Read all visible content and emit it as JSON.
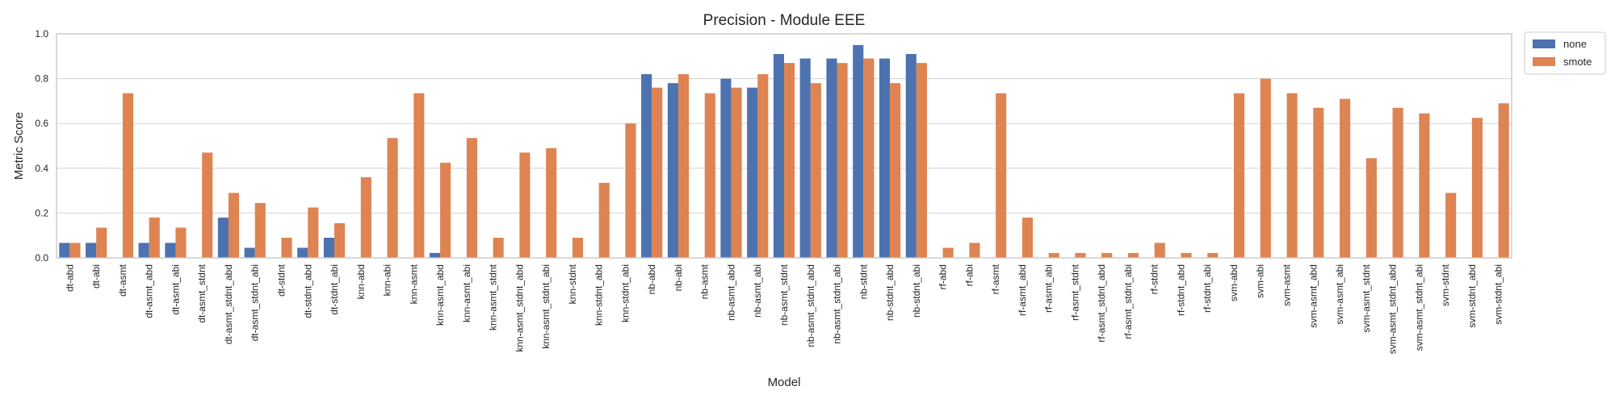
{
  "chart_data": {
    "type": "bar",
    "title": "Precision - Module EEE",
    "xlabel": "Model",
    "ylabel": "Metric Score",
    "ylim": [
      0,
      1.0
    ],
    "yticks": [
      "0.0",
      "0.2",
      "0.4",
      "0.6",
      "0.8",
      "1.0"
    ],
    "grid": true,
    "legend_position": "outside-top-right",
    "categories": [
      "dt-abd",
      "dt-abi",
      "dt-asmt",
      "dt-asmt_abd",
      "dt-asmt_abi",
      "dt-asmt_stdnt",
      "dt-asmt_stdnt_abd",
      "dt-asmt_stdnt_abi",
      "dt-stdnt",
      "dt-stdnt_abd",
      "dt-stdnt_abi",
      "knn-abd",
      "knn-abi",
      "knn-asmt",
      "knn-asmt_abd",
      "knn-asmt_abi",
      "knn-asmt_stdnt",
      "knn-asmt_stdnt_abd",
      "knn-asmt_stdnt_abi",
      "knn-stdnt",
      "knn-stdnt_abd",
      "knn-stdnt_abi",
      "nb-abd",
      "nb-abi",
      "nb-asmt",
      "nb-asmt_abd",
      "nb-asmt_abi",
      "nb-asmt_stdnt",
      "nb-asmt_stdnt_abd",
      "nb-asmt_stdnt_abi",
      "nb-stdnt",
      "nb-stdnt_abd",
      "nb-stdnt_abi",
      "rf-abd",
      "rf-abi",
      "rf-asmt",
      "rf-asmt_abd",
      "rf-asmt_abi",
      "rf-asmt_stdnt",
      "rf-asmt_stdnt_abd",
      "rf-asmt_stdnt_abi",
      "rf-stdnt",
      "rf-stdnt_abd",
      "rf-stdnt_abi",
      "svm-abd",
      "svm-abi",
      "svm-asmt",
      "svm-asmt_abd",
      "svm-asmt_abi",
      "svm-asmt_stdnt",
      "svm-asmt_stdnt_abd",
      "svm-asmt_stdnt_abi",
      "svm-stdnt",
      "svm-stdnt_abd",
      "svm-stdnt_abi"
    ],
    "series": [
      {
        "name": "none",
        "color": "#4c72b0",
        "values": [
          0.067,
          0.067,
          0.0,
          0.067,
          0.067,
          0.0,
          0.18,
          0.045,
          0.0,
          0.045,
          0.09,
          0.0,
          0.0,
          0.0,
          0.022,
          0.0,
          0.0,
          0.0,
          0.0,
          0.0,
          0.0,
          0.0,
          0.82,
          0.78,
          0.0,
          0.8,
          0.76,
          0.91,
          0.89,
          0.89,
          0.95,
          0.89,
          0.91,
          0.0,
          0.0,
          0.0,
          0.0,
          0.0,
          0.0,
          0.0,
          0.0,
          0.0,
          0.0,
          0.0,
          0.0,
          0.0,
          0.0,
          0.0,
          0.0,
          0.0,
          0.0,
          0.0,
          0.0,
          0.0,
          0.0
        ]
      },
      {
        "name": "smote",
        "color": "#dd8452",
        "values": [
          0.067,
          0.135,
          0.735,
          0.18,
          0.135,
          0.47,
          0.29,
          0.245,
          0.09,
          0.225,
          0.155,
          0.36,
          0.535,
          0.735,
          0.425,
          0.535,
          0.09,
          0.47,
          0.49,
          0.09,
          0.335,
          0.6,
          0.76,
          0.82,
          0.735,
          0.76,
          0.82,
          0.87,
          0.78,
          0.87,
          0.89,
          0.78,
          0.87,
          0.045,
          0.067,
          0.735,
          0.18,
          0.022,
          0.022,
          0.022,
          0.022,
          0.067,
          0.022,
          0.022,
          0.735,
          0.8,
          0.735,
          0.67,
          0.71,
          0.445,
          0.67,
          0.645,
          0.29,
          0.625,
          0.69
        ]
      }
    ]
  }
}
